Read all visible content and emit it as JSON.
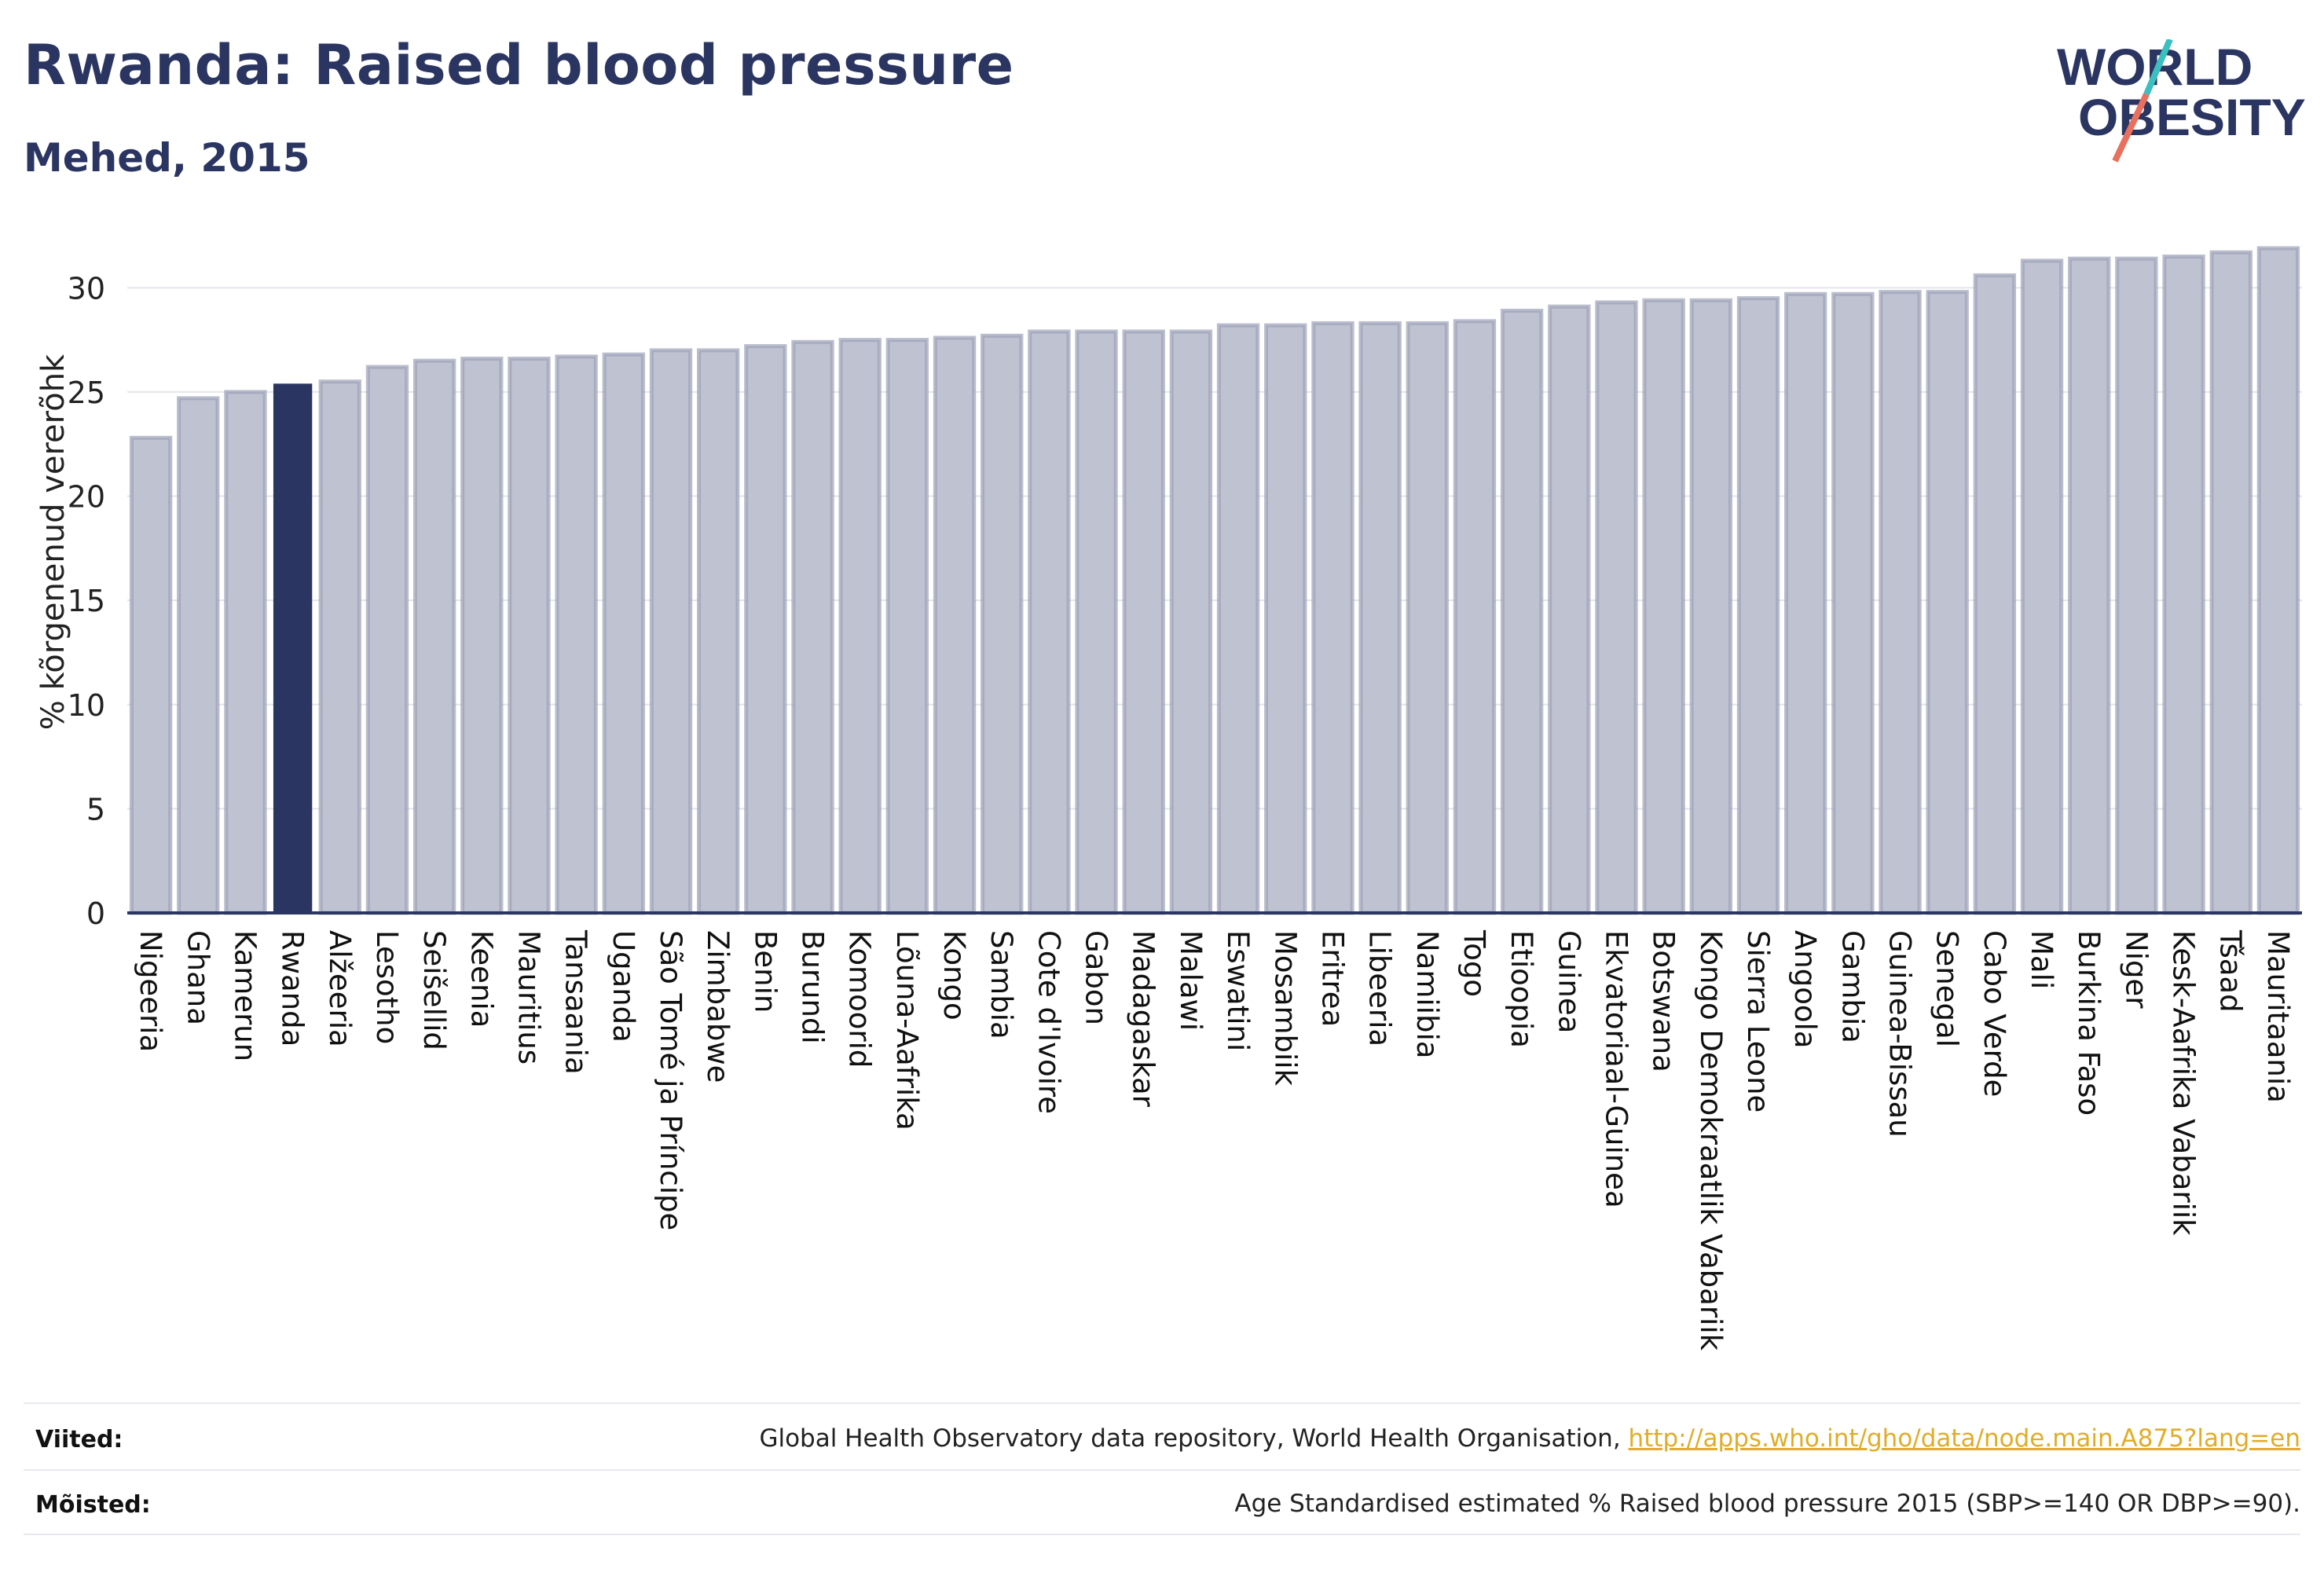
{
  "header": {
    "title": "Rwanda: Raised blood pressure",
    "subtitle": "Mehed, 2015"
  },
  "logo": {
    "line1": "WORLD",
    "line2": "OBESITY",
    "colors": {
      "text": "#2b3561",
      "teal": "#3bbfbf",
      "coral": "#e8705e"
    }
  },
  "colors": {
    "bar_fill": "#bfc2d0",
    "bar_stroke": "#9da1b8",
    "highlight": "#2b3561",
    "axis": "#2b3561",
    "grid": "#e3e5ec",
    "link": "#e0ad2a"
  },
  "chart_data": {
    "type": "bar",
    "ylabel": "% kõrgenenud vererõhk",
    "ylim": [
      0,
      32.5
    ],
    "yticks": [
      0,
      5,
      10,
      15,
      20,
      25,
      30
    ],
    "grid": true,
    "highlight": "Rwanda",
    "categories": [
      "Nigeeria",
      "Ghana",
      "Kamerun",
      "Rwanda",
      "Alžeeria",
      "Lesotho",
      "Seišellid",
      "Keenia",
      "Mauritius",
      "Tansaania",
      "Uganda",
      "São Tomé ja Príncipe",
      "Zimbabwe",
      "Benin",
      "Burundi",
      "Komoorid",
      "Lõuna-Aafrika",
      "Kongo",
      "Sambia",
      "Cote d'Ivoire",
      "Gabon",
      "Madagaskar",
      "Malawi",
      "Eswatini",
      "Mosambiik",
      "Eritrea",
      "Libeeria",
      "Namiibia",
      "Togo",
      "Etioopia",
      "Guinea",
      "Ekvatoriaal-Guinea",
      "Botswana",
      "Kongo Demokraatlik Vabariik",
      "Sierra Leone",
      "Angoola",
      "Gambia",
      "Guinea-Bissau",
      "Senegal",
      "Cabo Verde",
      "Mali",
      "Burkina Faso",
      "Niger",
      "Kesk-Aafrika Vabariik",
      "Tšaad",
      "Mauritaania"
    ],
    "values": [
      22.8,
      24.7,
      25.0,
      25.4,
      25.5,
      26.2,
      26.5,
      26.6,
      26.6,
      26.7,
      26.8,
      27.0,
      27.0,
      27.2,
      27.4,
      27.5,
      27.5,
      27.6,
      27.7,
      27.9,
      27.9,
      27.9,
      27.9,
      28.2,
      28.2,
      28.3,
      28.3,
      28.3,
      28.4,
      28.9,
      29.1,
      29.3,
      29.4,
      29.4,
      29.5,
      29.7,
      29.7,
      29.8,
      29.8,
      30.6,
      31.3,
      31.4,
      31.4,
      31.5,
      31.7,
      31.9
    ]
  },
  "footer": {
    "sources_label": "Viited:",
    "sources_text": "Global Health Observatory data repository, World Health Organisation,",
    "sources_link": "http://apps.who.int/gho/data/node.main.A875?lang=en",
    "definitions_label": "Mõisted:",
    "definitions_text": "Age Standardised estimated % Raised blood pressure 2015 (SBP>=140 OR DBP>=90)."
  }
}
